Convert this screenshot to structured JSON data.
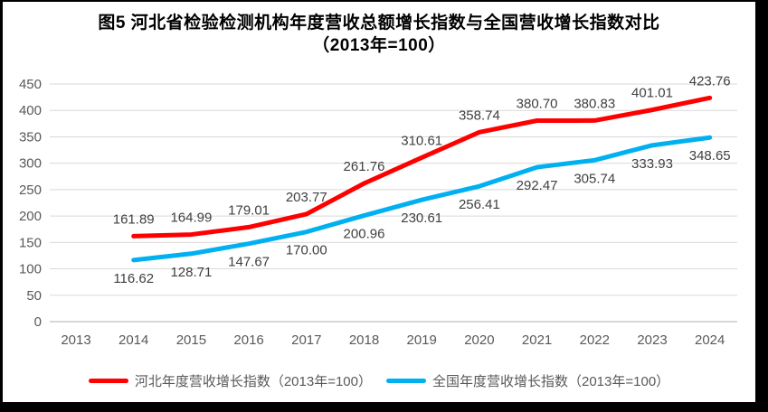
{
  "title": {
    "line1": "图5  河北省检验检测机构年度营收总额增长指数与全国营收增长指数对比",
    "line2": "（2013年=100）"
  },
  "colors": {
    "hebei_line": "#FF0000",
    "national_line": "#00B0F0",
    "gridline": "#D9D9D9",
    "axis_line": "#BFBFBF",
    "axis_text": "#595959",
    "data_label_text": "#404040",
    "panel_bg": "#FFFFFF",
    "frame_bg": "#000000"
  },
  "chart_data": {
    "type": "line",
    "title": "图5 河北省检验检测机构年度营收总额增长指数与全国营收增长指数对比（2013年=100）",
    "categories": [
      "2013",
      "2014",
      "2015",
      "2016",
      "2017",
      "2018",
      "2019",
      "2020",
      "2021",
      "2022",
      "2023",
      "2024"
    ],
    "y_ticks": [
      0,
      50,
      100,
      150,
      200,
      250,
      300,
      350,
      400,
      450
    ],
    "ylim": [
      0,
      450
    ],
    "grid": "horizontal",
    "legend_position": "bottom",
    "data_labels": true,
    "series": [
      {
        "key": "hebei",
        "name": "河北年度营收增长指数（2013年=100）",
        "color": "#FF0000",
        "start_index": 1,
        "label_position": "above",
        "values": [
          161.89,
          164.99,
          179.01,
          203.77,
          261.76,
          310.61,
          358.74,
          380.7,
          380.83,
          401.01,
          423.76
        ]
      },
      {
        "key": "national",
        "name": "全国年度营收增长指数（2013年=100）",
        "color": "#00B0F0",
        "start_index": 1,
        "label_position": "below",
        "values": [
          116.62,
          128.71,
          147.67,
          170.0,
          200.96,
          230.61,
          256.41,
          292.47,
          305.74,
          333.93,
          348.65
        ]
      }
    ]
  }
}
